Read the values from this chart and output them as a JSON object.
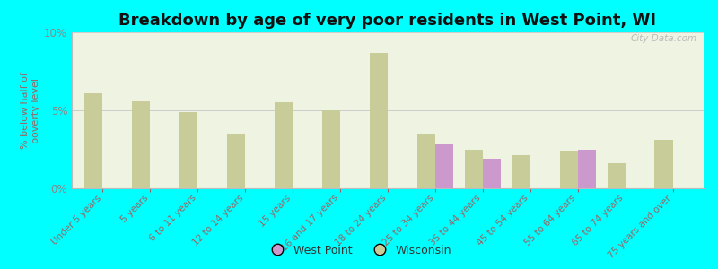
{
  "title": "Breakdown by age of very poor residents in West Point, WI",
  "ylabel": "% below half of\npoverty level",
  "background_color": "#00ffff",
  "plot_bg_color": "#eef3e2",
  "categories": [
    "Under 5 years",
    "5 years",
    "6 to 11 years",
    "12 to 14 years",
    "15 years",
    "16 and 17 years",
    "18 to 24 years",
    "25 to 34 years",
    "35 to 44 years",
    "45 to 54 years",
    "55 to 64 years",
    "65 to 74 years",
    "75 years and over"
  ],
  "west_point": [
    0,
    0,
    0,
    0,
    0,
    0,
    0,
    2.8,
    1.9,
    0,
    2.5,
    0,
    0
  ],
  "wisconsin": [
    6.1,
    5.6,
    4.9,
    3.5,
    5.5,
    5.0,
    8.7,
    3.5,
    2.5,
    2.1,
    2.4,
    1.6,
    3.1
  ],
  "west_point_color": "#cc99cc",
  "wisconsin_color": "#c8cc99",
  "ylim": [
    0,
    10
  ],
  "yticks": [
    0,
    5,
    10
  ],
  "ytick_labels": [
    "0%",
    "5%",
    "10%"
  ],
  "watermark": "City-Data.com",
  "title_fontsize": 13,
  "legend_wp_label": "West Point",
  "legend_wi_label": "Wisconsin",
  "tick_color": "#996666",
  "ylabel_color": "#996666"
}
